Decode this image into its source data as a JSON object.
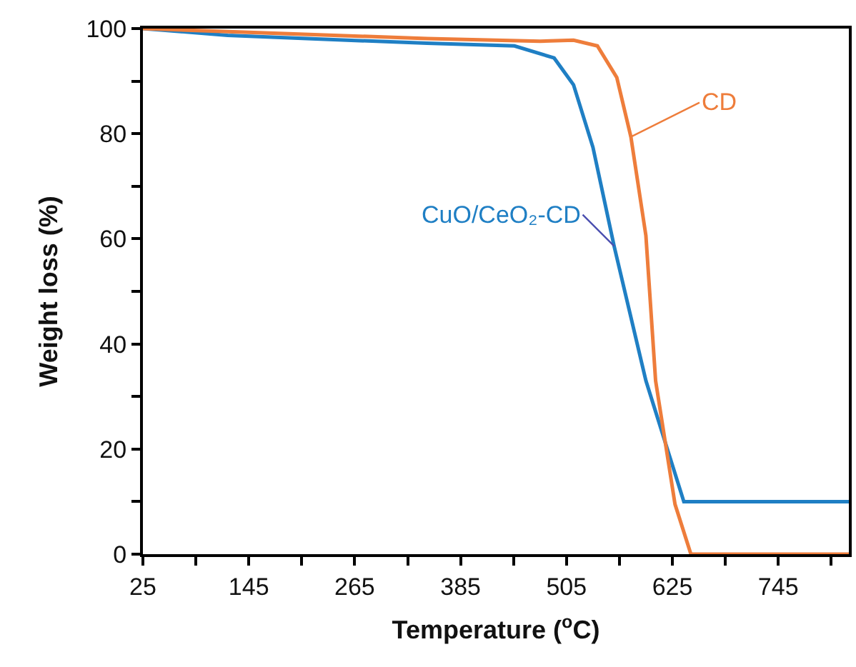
{
  "chart_data": {
    "type": "line",
    "xlabel": "Temperature ($^{o}$C)",
    "ylabel": "Weight loss (%)",
    "series": [
      {
        "name": "CuO/CeO₂-CD",
        "color": "#1f7fc4",
        "x": [
          25,
          121,
          347,
          446,
          491,
          513,
          535,
          559,
          595,
          638,
          825
        ],
        "values": [
          100,
          98.7,
          97.2,
          96.7,
          94.4,
          89.3,
          77.4,
          58.6,
          33,
          10,
          10
        ]
      },
      {
        "name": "CD",
        "color": "#ee7d3b",
        "x": [
          25,
          347,
          475,
          513,
          540,
          562,
          578,
          595,
          606,
          628,
          646,
          825
        ],
        "values": [
          100,
          98.1,
          97.6,
          97.8,
          96.7,
          90.7,
          79.4,
          60.6,
          33,
          9.5,
          0,
          0
        ]
      }
    ],
    "xlim": [
      25,
      825
    ],
    "xticks": [
      25,
      {
        "value": 85,
        "label": null
      },
      145,
      {
        "value": 205,
        "label": null
      },
      265,
      {
        "value": 325,
        "label": null
      },
      385,
      {
        "value": 445,
        "label": null
      },
      505,
      {
        "value": 565,
        "label": null
      },
      625,
      {
        "value": 685,
        "label": null
      },
      745,
      {
        "value": 805,
        "label": null
      }
    ],
    "ylim": [
      0,
      100
    ],
    "yticks": [
      0,
      {
        "value": 10,
        "label": null
      },
      20,
      {
        "value": 30,
        "label": null
      },
      40,
      {
        "value": 50,
        "label": null
      },
      60,
      {
        "value": 70,
        "label": null
      },
      80,
      {
        "value": 90,
        "label": null
      },
      100
    ],
    "grid": false,
    "legend": false,
    "marker": "none",
    "line_style": "solid"
  }
}
